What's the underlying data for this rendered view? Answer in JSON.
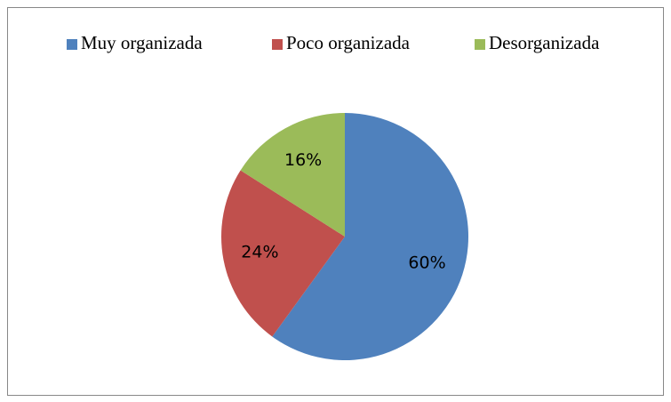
{
  "chart_data": {
    "type": "pie",
    "categories": [
      "Muy organizada",
      "Poco organizada",
      "Desorganizada"
    ],
    "values": [
      60,
      24,
      16
    ],
    "value_labels": [
      "60%",
      "24%",
      "16%"
    ],
    "colors": [
      "#4f81bd",
      "#c0504d",
      "#9bbb59"
    ],
    "legend": "top"
  }
}
